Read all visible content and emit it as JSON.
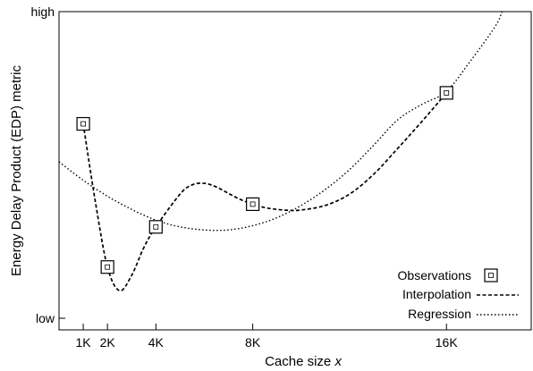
{
  "chart_data": {
    "type": "line",
    "xlabel": "Cache size",
    "xlabel_var": "x",
    "ylabel": "Energy Delay Product (EDP) metric",
    "xlim": [
      0,
      19.5
    ],
    "ylim": [
      0,
      1
    ],
    "x_ticks": [
      {
        "value": 1,
        "label": "1K"
      },
      {
        "value": 2,
        "label": "2K"
      },
      {
        "value": 4,
        "label": "4K"
      },
      {
        "value": 8,
        "label": "8K"
      },
      {
        "value": 16,
        "label": "16K"
      }
    ],
    "y_ticks": [
      {
        "value": 0,
        "label": "low"
      },
      {
        "value": 1,
        "label": "high"
      }
    ],
    "grid": false,
    "legend_position": "bottom-right",
    "series": [
      {
        "name": "Observations",
        "style": "square-marker",
        "x": [
          1,
          2,
          4,
          8,
          16
        ],
        "y": [
          0.634,
          0.167,
          0.298,
          0.372,
          0.735
        ]
      },
      {
        "name": "Interpolation",
        "style": "dashed",
        "x": [
          1,
          1.5,
          2,
          2.5,
          3,
          3.5,
          4,
          5,
          5.5,
          6,
          6.5,
          7,
          7.5,
          8,
          8.5,
          9,
          9.5,
          10,
          11,
          12,
          13,
          14,
          15,
          16
        ],
        "y": [
          0.634,
          0.38,
          0.167,
          0.09,
          0.14,
          0.23,
          0.298,
          0.405,
          0.435,
          0.44,
          0.428,
          0.407,
          0.387,
          0.372,
          0.361,
          0.355,
          0.352,
          0.353,
          0.368,
          0.405,
          0.47,
          0.555,
          0.643,
          0.735
        ]
      },
      {
        "name": "Regression",
        "style": "dotted",
        "x": [
          0,
          1,
          2,
          3,
          4,
          5,
          6,
          7,
          8,
          9,
          10,
          11,
          12,
          13,
          14,
          15,
          16,
          17,
          18,
          18.3
        ],
        "y": [
          0.51,
          0.45,
          0.398,
          0.355,
          0.32,
          0.298,
          0.288,
          0.288,
          0.302,
          0.328,
          0.368,
          0.42,
          0.485,
          0.565,
          0.648,
          0.698,
          0.74,
          0.84,
          0.95,
          1.0
        ]
      }
    ]
  },
  "legend": {
    "observations_label": "Observations",
    "interpolation_label": "Interpolation",
    "regression_label": "Regression"
  }
}
